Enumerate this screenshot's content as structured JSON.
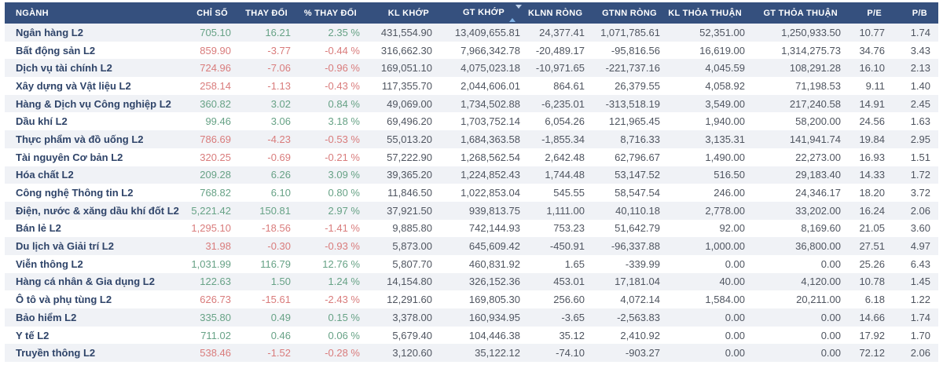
{
  "colors": {
    "header_bg": "#35507e",
    "up": "#67a286",
    "down": "#d97c7c",
    "row_alt": "#f0f2f6",
    "sector_name": "#2f4469",
    "neutral": "#4f5560"
  },
  "icons": {
    "gt_khop_sort": "sort-arrows-icon"
  },
  "table": {
    "columns": [
      {
        "key": "nganh",
        "label": "NGÀNH",
        "align": "left",
        "sorted": false,
        "trend_colored": false
      },
      {
        "key": "chi_so",
        "label": "CHỈ SỐ",
        "align": "right",
        "sorted": false,
        "trend_colored": true
      },
      {
        "key": "thay_doi",
        "label": "THAY ĐỔI",
        "align": "right",
        "sorted": false,
        "trend_colored": true
      },
      {
        "key": "pct_thay_doi",
        "label": "% THAY ĐỔI",
        "align": "right",
        "sorted": false,
        "trend_colored": true
      },
      {
        "key": "kl_khop",
        "label": "KL KHỚP",
        "align": "right",
        "sorted": false,
        "trend_colored": false
      },
      {
        "key": "gt_khop",
        "label": "GT KHỚP",
        "align": "right",
        "sorted": true,
        "trend_colored": false
      },
      {
        "key": "klnn_rong",
        "label": "KLNN RÒNG",
        "align": "right",
        "sorted": false,
        "trend_colored": false
      },
      {
        "key": "gtnn_rong",
        "label": "GTNN RÒNG",
        "align": "right",
        "sorted": false,
        "trend_colored": false
      },
      {
        "key": "kl_thoa_thuan",
        "label": "KL THỎA THUẬN",
        "align": "right",
        "sorted": false,
        "trend_colored": false
      },
      {
        "key": "gt_thoa_thuan",
        "label": "GT THỎA THUẬN",
        "align": "right",
        "sorted": false,
        "trend_colored": false
      },
      {
        "key": "pe",
        "label": "P/E",
        "align": "right",
        "sorted": false,
        "trend_colored": false
      },
      {
        "key": "pb",
        "label": "P/B",
        "align": "right",
        "sorted": false,
        "trend_colored": false
      }
    ],
    "rows": [
      {
        "nganh": "Ngân hàng L2",
        "trend": "up",
        "chi_so": "705.10",
        "thay_doi": "16.21",
        "pct_thay_doi": "2.35 %",
        "kl_khop": "431,554.90",
        "gt_khop": "13,409,655.81",
        "klnn_rong": "24,377.41",
        "gtnn_rong": "1,071,785.61",
        "kl_thoa_thuan": "52,351.00",
        "gt_thoa_thuan": "1,250,933.50",
        "pe": "10.77",
        "pb": "1.74"
      },
      {
        "nganh": "Bất động sản L2",
        "trend": "down",
        "chi_so": "859.90",
        "thay_doi": "-3.77",
        "pct_thay_doi": "-0.44 %",
        "kl_khop": "316,662.30",
        "gt_khop": "7,966,342.78",
        "klnn_rong": "-20,489.17",
        "gtnn_rong": "-95,816.56",
        "kl_thoa_thuan": "16,619.00",
        "gt_thoa_thuan": "1,314,275.73",
        "pe": "34.76",
        "pb": "3.43"
      },
      {
        "nganh": "Dịch vụ tài chính L2",
        "trend": "down",
        "chi_so": "724.96",
        "thay_doi": "-7.06",
        "pct_thay_doi": "-0.96 %",
        "kl_khop": "169,051.10",
        "gt_khop": "4,075,023.18",
        "klnn_rong": "-10,971.65",
        "gtnn_rong": "-221,737.16",
        "kl_thoa_thuan": "4,045.59",
        "gt_thoa_thuan": "108,291.28",
        "pe": "16.10",
        "pb": "2.13"
      },
      {
        "nganh": "Xây dựng và Vật liệu L2",
        "trend": "down",
        "chi_so": "258.14",
        "thay_doi": "-1.13",
        "pct_thay_doi": "-0.43 %",
        "kl_khop": "117,355.70",
        "gt_khop": "2,044,606.01",
        "klnn_rong": "864.61",
        "gtnn_rong": "26,379.55",
        "kl_thoa_thuan": "4,058.92",
        "gt_thoa_thuan": "71,198.53",
        "pe": "9.11",
        "pb": "1.40"
      },
      {
        "nganh": "Hàng & Dịch vụ Công nghiệp L2",
        "trend": "up",
        "chi_so": "360.82",
        "thay_doi": "3.02",
        "pct_thay_doi": "0.84 %",
        "kl_khop": "49,069.00",
        "gt_khop": "1,734,502.88",
        "klnn_rong": "-6,235.01",
        "gtnn_rong": "-313,518.19",
        "kl_thoa_thuan": "3,549.00",
        "gt_thoa_thuan": "217,240.58",
        "pe": "14.91",
        "pb": "2.45"
      },
      {
        "nganh": "Dầu khí L2",
        "trend": "up",
        "chi_so": "99.46",
        "thay_doi": "3.06",
        "pct_thay_doi": "3.18 %",
        "kl_khop": "69,496.20",
        "gt_khop": "1,703,752.14",
        "klnn_rong": "6,054.26",
        "gtnn_rong": "121,965.45",
        "kl_thoa_thuan": "1,940.00",
        "gt_thoa_thuan": "58,200.00",
        "pe": "24.56",
        "pb": "1.63"
      },
      {
        "nganh": "Thực phẩm và đồ uống L2",
        "trend": "down",
        "chi_so": "786.69",
        "thay_doi": "-4.23",
        "pct_thay_doi": "-0.53 %",
        "kl_khop": "55,013.20",
        "gt_khop": "1,684,363.58",
        "klnn_rong": "-1,855.34",
        "gtnn_rong": "8,716.33",
        "kl_thoa_thuan": "3,135.31",
        "gt_thoa_thuan": "141,941.74",
        "pe": "19.84",
        "pb": "2.95"
      },
      {
        "nganh": "Tài nguyên Cơ bản L2",
        "trend": "down",
        "chi_so": "320.25",
        "thay_doi": "-0.69",
        "pct_thay_doi": "-0.21 %",
        "kl_khop": "57,222.90",
        "gt_khop": "1,268,562.54",
        "klnn_rong": "2,642.48",
        "gtnn_rong": "62,796.67",
        "kl_thoa_thuan": "1,490.00",
        "gt_thoa_thuan": "22,273.00",
        "pe": "16.93",
        "pb": "1.51"
      },
      {
        "nganh": "Hóa chất L2",
        "trend": "up",
        "chi_so": "209.28",
        "thay_doi": "6.26",
        "pct_thay_doi": "3.09 %",
        "kl_khop": "39,365.20",
        "gt_khop": "1,224,852.43",
        "klnn_rong": "1,744.48",
        "gtnn_rong": "53,147.52",
        "kl_thoa_thuan": "516.50",
        "gt_thoa_thuan": "29,183.40",
        "pe": "14.33",
        "pb": "1.72"
      },
      {
        "nganh": "Công nghệ Thông tin L2",
        "trend": "up",
        "chi_so": "768.82",
        "thay_doi": "6.10",
        "pct_thay_doi": "0.80 %",
        "kl_khop": "11,846.50",
        "gt_khop": "1,022,853.04",
        "klnn_rong": "545.55",
        "gtnn_rong": "58,547.54",
        "kl_thoa_thuan": "246.00",
        "gt_thoa_thuan": "24,346.17",
        "pe": "18.20",
        "pb": "3.72"
      },
      {
        "nganh": "Điện, nước & xăng dầu khí đốt L2",
        "trend": "up",
        "chi_so": "5,221.42",
        "thay_doi": "150.81",
        "pct_thay_doi": "2.97 %",
        "kl_khop": "37,921.50",
        "gt_khop": "939,813.75",
        "klnn_rong": "1,111.00",
        "gtnn_rong": "40,110.18",
        "kl_thoa_thuan": "2,778.00",
        "gt_thoa_thuan": "33,202.00",
        "pe": "16.24",
        "pb": "2.06"
      },
      {
        "nganh": "Bán lẻ L2",
        "trend": "down",
        "chi_so": "1,295.10",
        "thay_doi": "-18.56",
        "pct_thay_doi": "-1.41 %",
        "kl_khop": "9,885.80",
        "gt_khop": "742,144.93",
        "klnn_rong": "753.23",
        "gtnn_rong": "51,642.79",
        "kl_thoa_thuan": "92.00",
        "gt_thoa_thuan": "8,169.60",
        "pe": "21.05",
        "pb": "3.60"
      },
      {
        "nganh": "Du lịch và Giải trí L2",
        "trend": "down",
        "chi_so": "31.98",
        "thay_doi": "-0.30",
        "pct_thay_doi": "-0.93 %",
        "kl_khop": "5,873.00",
        "gt_khop": "645,609.42",
        "klnn_rong": "-450.91",
        "gtnn_rong": "-96,337.88",
        "kl_thoa_thuan": "1,000.00",
        "gt_thoa_thuan": "36,800.00",
        "pe": "27.51",
        "pb": "4.97"
      },
      {
        "nganh": "Viễn thông L2",
        "trend": "up",
        "chi_so": "1,031.99",
        "thay_doi": "116.79",
        "pct_thay_doi": "12.76 %",
        "kl_khop": "5,807.70",
        "gt_khop": "460,831.92",
        "klnn_rong": "1.65",
        "gtnn_rong": "-339.99",
        "kl_thoa_thuan": "0.00",
        "gt_thoa_thuan": "0.00",
        "pe": "25.26",
        "pb": "6.43"
      },
      {
        "nganh": "Hàng cá nhân & Gia dụng L2",
        "trend": "up",
        "chi_so": "122.63",
        "thay_doi": "1.50",
        "pct_thay_doi": "1.24 %",
        "kl_khop": "14,154.80",
        "gt_khop": "326,152.36",
        "klnn_rong": "453.01",
        "gtnn_rong": "17,181.04",
        "kl_thoa_thuan": "40.00",
        "gt_thoa_thuan": "4,120.00",
        "pe": "10.78",
        "pb": "1.45"
      },
      {
        "nganh": "Ô tô và phụ tùng L2",
        "trend": "down",
        "chi_so": "626.73",
        "thay_doi": "-15.61",
        "pct_thay_doi": "-2.43 %",
        "kl_khop": "12,291.60",
        "gt_khop": "169,805.30",
        "klnn_rong": "256.60",
        "gtnn_rong": "4,072.14",
        "kl_thoa_thuan": "1,584.00",
        "gt_thoa_thuan": "20,211.00",
        "pe": "6.18",
        "pb": "1.22"
      },
      {
        "nganh": "Bảo hiểm L2",
        "trend": "up",
        "chi_so": "335.80",
        "thay_doi": "0.49",
        "pct_thay_doi": "0.15 %",
        "kl_khop": "3,378.00",
        "gt_khop": "160,934.95",
        "klnn_rong": "-3.65",
        "gtnn_rong": "-2,563.83",
        "kl_thoa_thuan": "0.00",
        "gt_thoa_thuan": "0.00",
        "pe": "14.66",
        "pb": "1.74"
      },
      {
        "nganh": "Y tế L2",
        "trend": "up",
        "chi_so": "711.02",
        "thay_doi": "0.46",
        "pct_thay_doi": "0.06 %",
        "kl_khop": "5,679.40",
        "gt_khop": "104,446.38",
        "klnn_rong": "35.12",
        "gtnn_rong": "2,410.92",
        "kl_thoa_thuan": "0.00",
        "gt_thoa_thuan": "0.00",
        "pe": "17.92",
        "pb": "1.70"
      },
      {
        "nganh": "Truyền thông L2",
        "trend": "down",
        "chi_so": "538.46",
        "thay_doi": "-1.52",
        "pct_thay_doi": "-0.28 %",
        "kl_khop": "3,120.60",
        "gt_khop": "35,122.12",
        "klnn_rong": "-74.10",
        "gtnn_rong": "-903.27",
        "kl_thoa_thuan": "0.00",
        "gt_thoa_thuan": "0.00",
        "pe": "72.12",
        "pb": "2.06"
      }
    ]
  }
}
